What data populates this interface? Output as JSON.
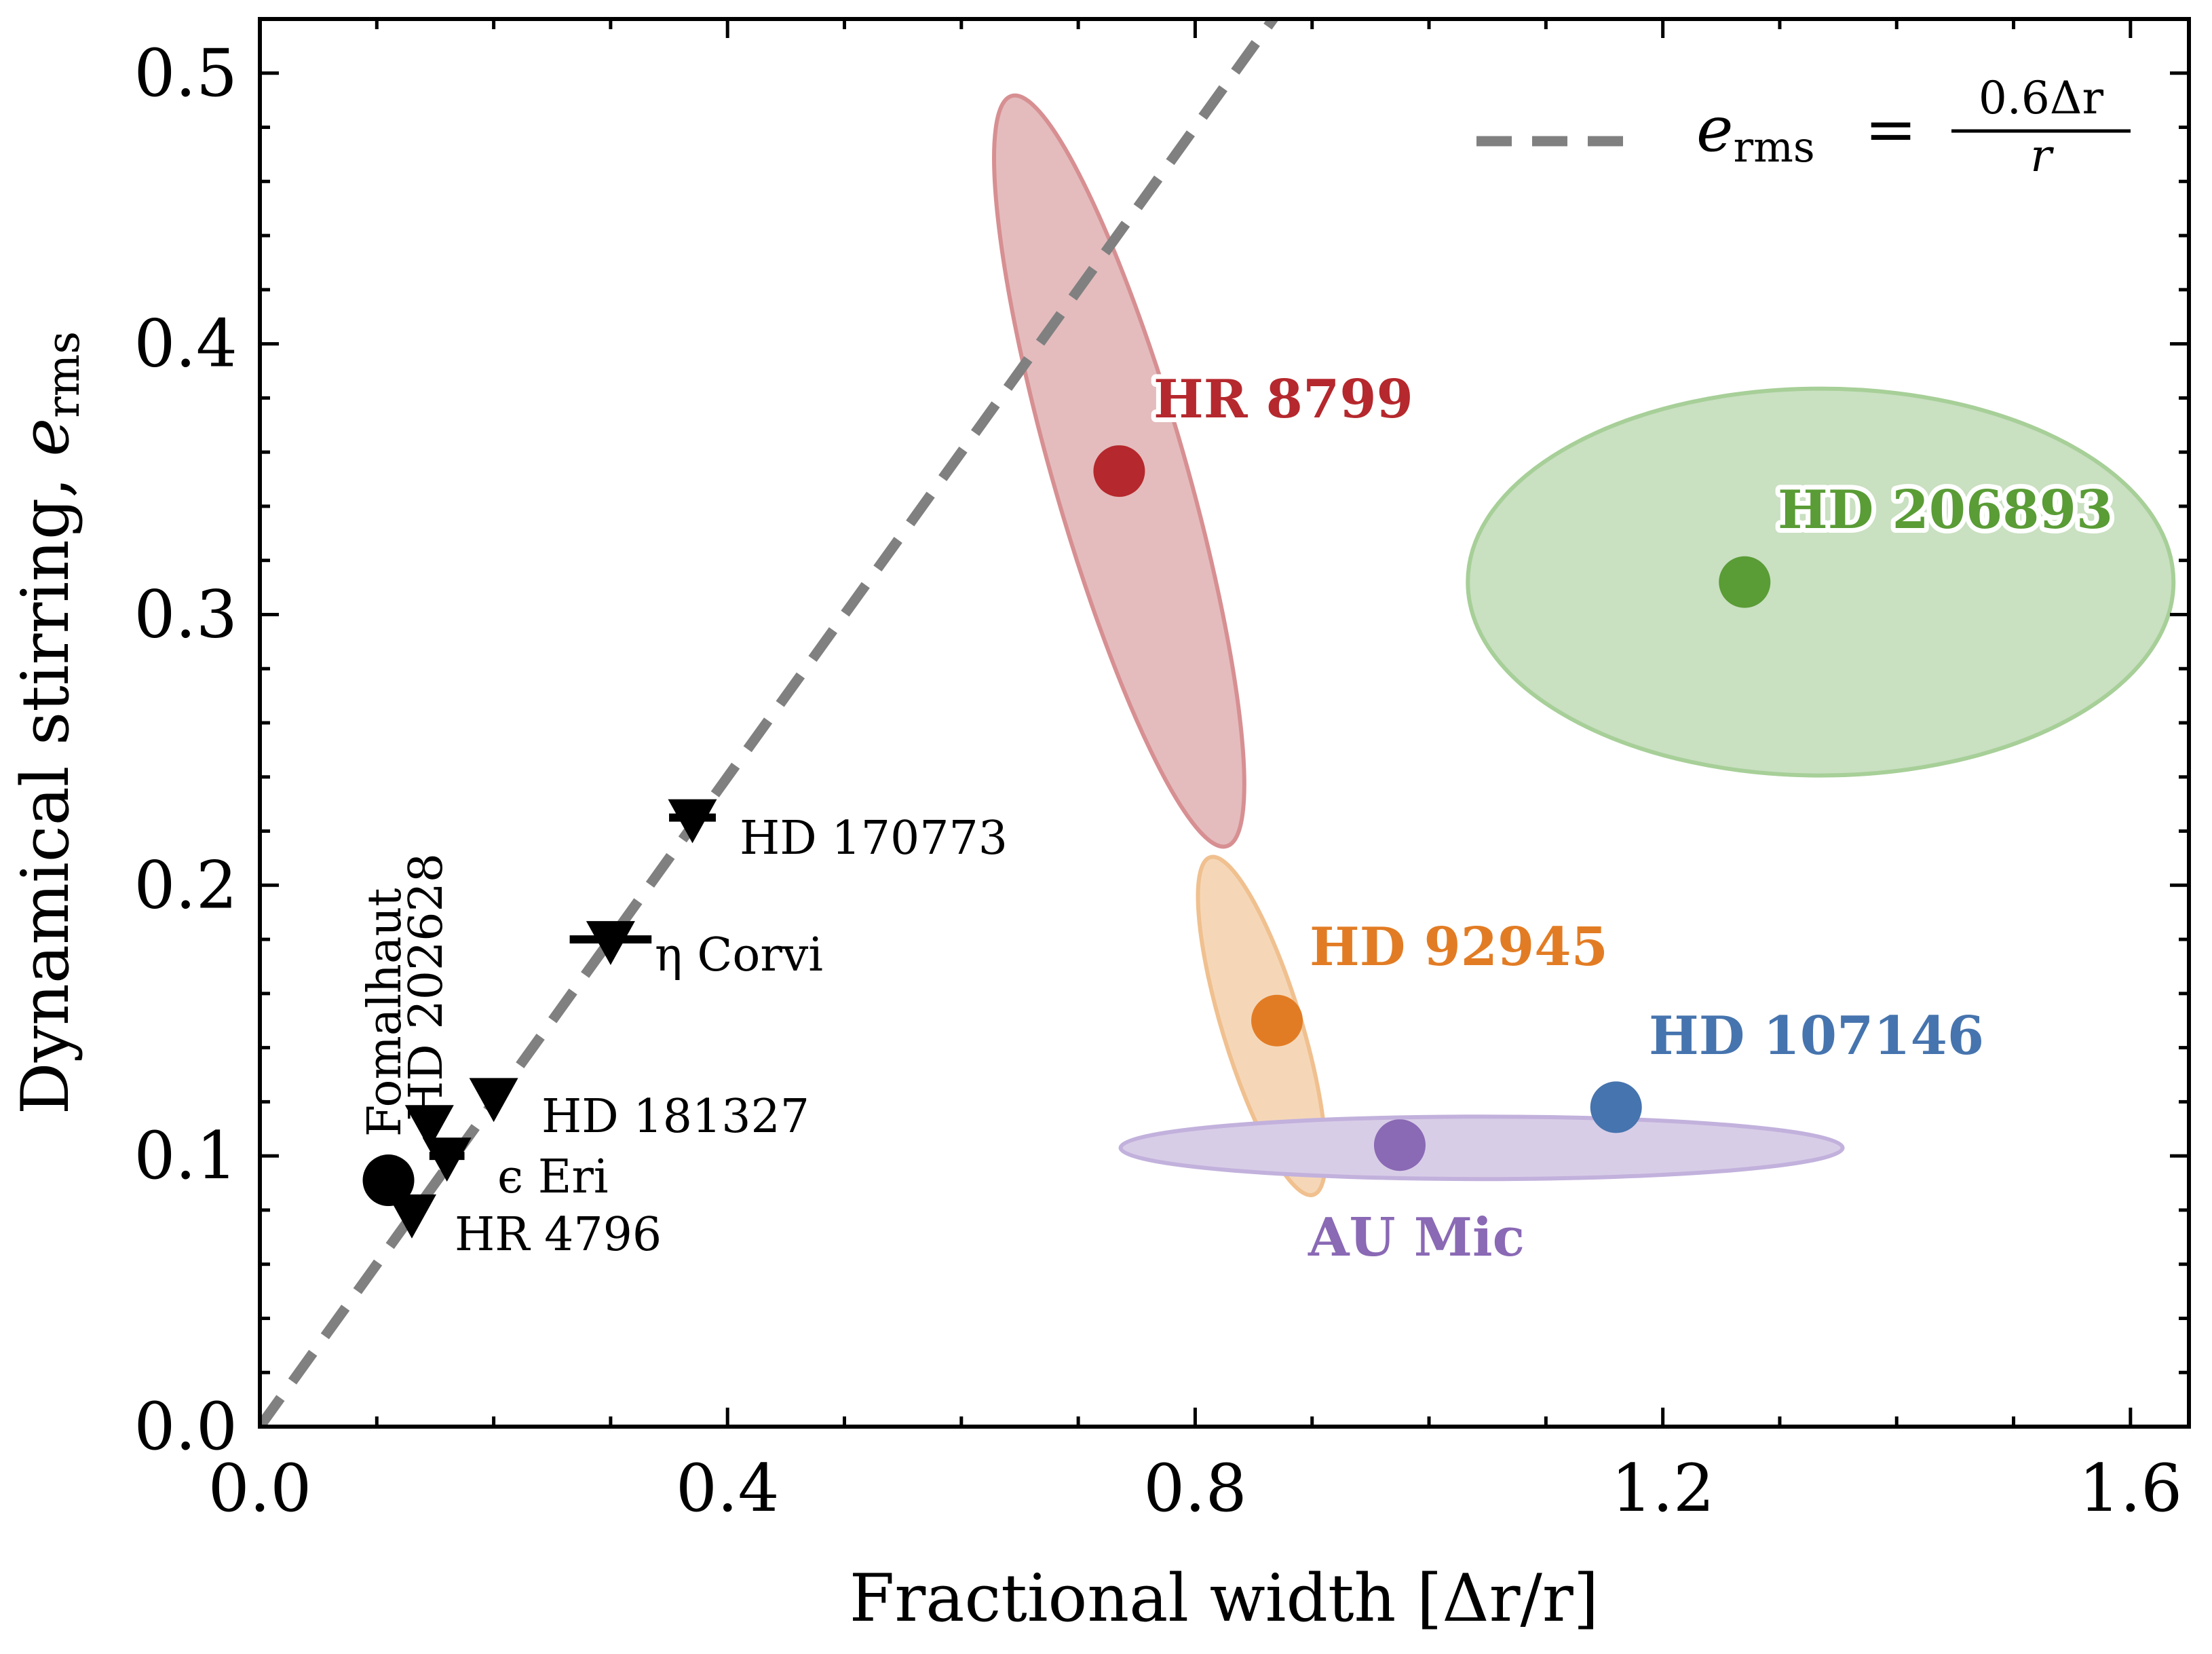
{
  "chart_data": {
    "type": "scatter",
    "xlabel": "Fractional width [Δr/r]",
    "ylabel_main": "Dynamical stirring, ",
    "ylabel_sym": "e",
    "ylabel_sub": "rms",
    "xlim": [
      0.0,
      1.65
    ],
    "ylim": [
      0.0,
      0.52
    ],
    "x_ticks": [
      "0.0",
      "0.4",
      "0.8",
      "1.2",
      "1.6"
    ],
    "y_ticks": [
      "0.0",
      "0.1",
      "0.2",
      "0.3",
      "0.4",
      "0.5"
    ],
    "x_tick_values": [
      0.0,
      0.4,
      0.8,
      1.2,
      1.6
    ],
    "y_tick_values": [
      0.0,
      0.1,
      0.2,
      0.3,
      0.4,
      0.5
    ],
    "x_minor_step": 0.1,
    "y_minor_step": 0.02,
    "model_line": {
      "slope": 0.6,
      "color": "#808080",
      "style": "dashed"
    },
    "legend": {
      "placement": "top-right",
      "lhs_sym": "e",
      "lhs_sub": "rms",
      "equals": "=",
      "numerator": "0.6Δr",
      "denominator": "r"
    },
    "upper_limits": [
      {
        "name": "HD 170773",
        "x": 0.37,
        "y": 0.225,
        "xerr": 0.02
      },
      {
        "name": "η Corvi",
        "x": 0.3,
        "y": 0.18,
        "xerr": 0.035
      },
      {
        "name": "HD 181327",
        "x": 0.2,
        "y": 0.122,
        "xerr": 0.0
      },
      {
        "name": "HD 202628",
        "x": 0.145,
        "y": 0.112,
        "xerr": 0.0
      },
      {
        "name": "ϵ Eri",
        "x": 0.16,
        "y": 0.1,
        "xerr": 0.015
      },
      {
        "name": "HR 4796",
        "x": 0.13,
        "y": 0.079,
        "xerr": 0.0
      }
    ],
    "black_points": [
      {
        "name": "Fomalhaut",
        "x": 0.11,
        "y": 0.091
      }
    ],
    "measured": [
      {
        "name": "HR 8799",
        "x": 0.735,
        "y": 0.353,
        "color": "#b5282d",
        "ellipse_fill": "#e4bcbd",
        "ellipse_stroke": "#d78f92"
      },
      {
        "name": "HD 206893",
        "x": 1.27,
        "y": 0.312,
        "color": "#5a9c36",
        "ellipse_fill": "#c9e0c1",
        "ellipse_stroke": "#a7cf98"
      },
      {
        "name": "HD 92945",
        "x": 0.87,
        "y": 0.15,
        "color": "#e27c24",
        "ellipse_fill": "#f5d7b8",
        "ellipse_stroke": "#f0c08f"
      },
      {
        "name": "HD 107146",
        "x": 1.16,
        "y": 0.118,
        "color": "#4674ae",
        "ellipse_fill": null,
        "ellipse_stroke": null
      },
      {
        "name": "AU Mic",
        "x": 0.975,
        "y": 0.104,
        "color": "#8a69b5",
        "ellipse_fill": "#d8cde7",
        "ellipse_stroke": "#c2b1dc"
      }
    ]
  }
}
